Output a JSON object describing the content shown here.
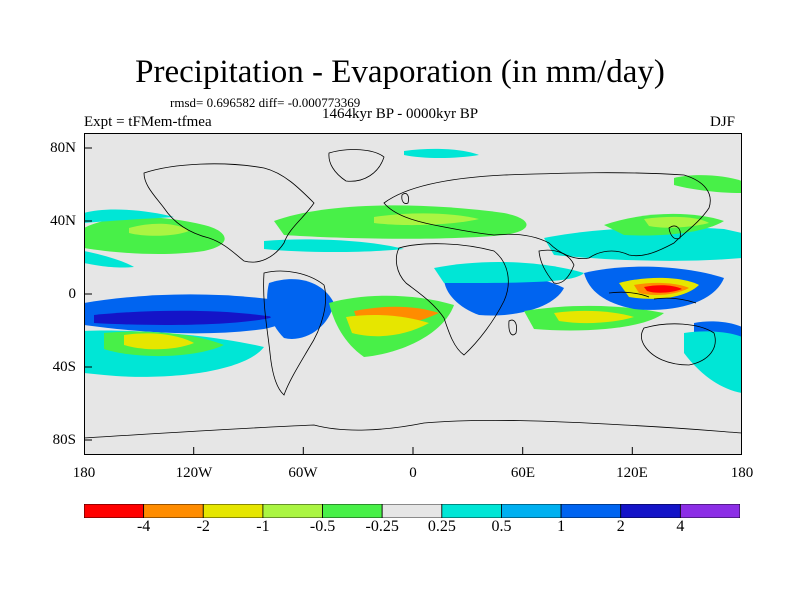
{
  "title": "Precipitation - Evaporation (in mm/day)",
  "stats_line": "rmsd= 0.696582 diff= -0.000773369",
  "period": "1464kyr BP - 0000kyr BP",
  "experiment": "Expt = tFMem-tfmea",
  "season": "DJF",
  "map": {
    "land_color": "#e6e6e6",
    "lat_ticks": [
      "80N",
      "40N",
      "0",
      "40S",
      "80S"
    ],
    "lon_ticks": [
      "180",
      "120W",
      "60W",
      "0",
      "60E",
      "120E",
      "180"
    ]
  },
  "colorbar": {
    "colors": [
      "#ff0000",
      "#ff8c00",
      "#e6e600",
      "#aaf542",
      "#48f048",
      "#e6e6e6",
      "#00e6d6",
      "#00b0f0",
      "#0064f0",
      "#1414c8",
      "#8c2ee6"
    ],
    "labels": [
      "-4",
      "-2",
      "-1",
      "-0.5",
      "-0.25",
      "0.25",
      "0.5",
      "1",
      "2",
      "4"
    ]
  }
}
